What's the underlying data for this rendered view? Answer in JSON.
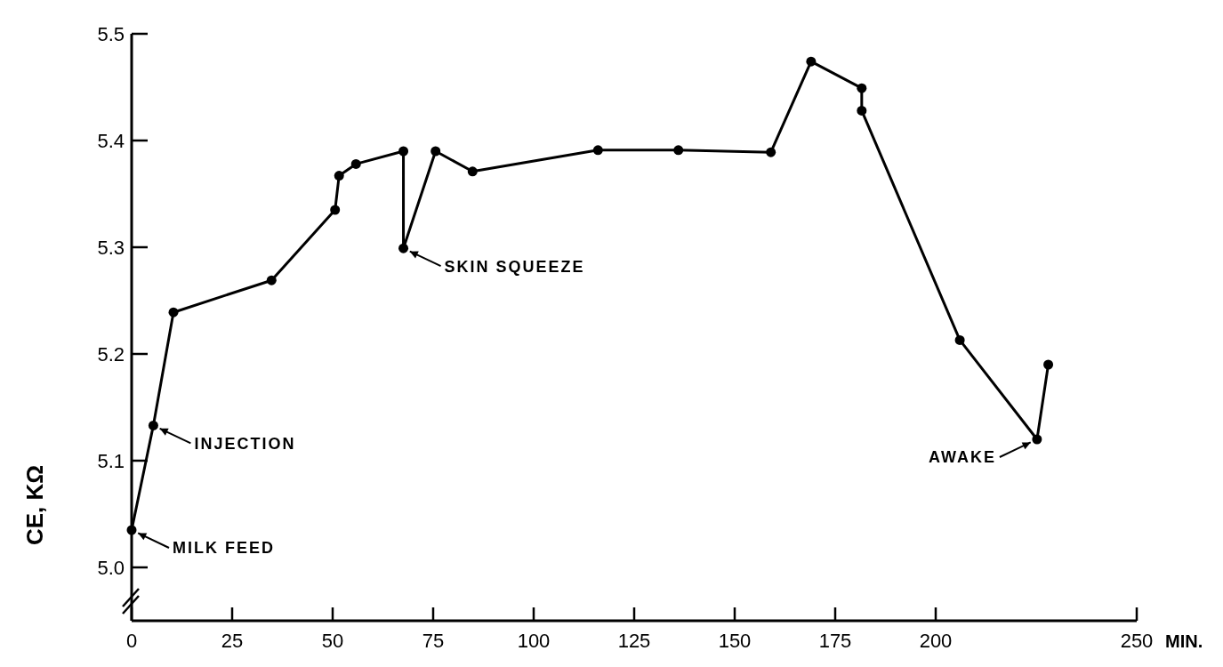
{
  "chart_data": {
    "type": "line",
    "ylabel": "CE, KΩ",
    "xlabel": "MIN.",
    "x": [
      0,
      5.4,
      10.4,
      34.8,
      50.6,
      51.6,
      55.8,
      67.6,
      67.6,
      75.6,
      84.8,
      116,
      136,
      159,
      169,
      181.6,
      181.6,
      206,
      225.2,
      228
    ],
    "series": [
      {
        "color": "#000000",
        "values": [
          5.035,
          5.133,
          5.239,
          5.269,
          5.335,
          5.367,
          5.378,
          5.39,
          5.299,
          5.39,
          5.371,
          5.391,
          5.391,
          5.389,
          5.474,
          5.449,
          5.428,
          5.213,
          5.12,
          5.19
        ]
      }
    ],
    "xlim": [
      0,
      250
    ],
    "xticks": [
      0,
      25,
      50,
      75,
      100,
      125,
      150,
      175,
      200,
      250
    ],
    "ylim": [
      4.95,
      5.5
    ],
    "yticks": [
      {
        "value": 5,
        "label": "5.0"
      },
      5.1,
      5.2,
      5.3,
      5.4,
      5.5
    ],
    "marker": "circle",
    "line_style": "solid",
    "annotations": [
      {
        "text": "MILK FEED",
        "x": 0,
        "y": 5.035
      },
      {
        "text": "INJECTION",
        "x": 5.4,
        "y": 5.133
      },
      {
        "text": "SKIN SQUEEZE",
        "x": 67.6,
        "y": 5.299
      },
      {
        "text": "AWAKE",
        "x": 225.2,
        "y": 5.12
      }
    ]
  }
}
